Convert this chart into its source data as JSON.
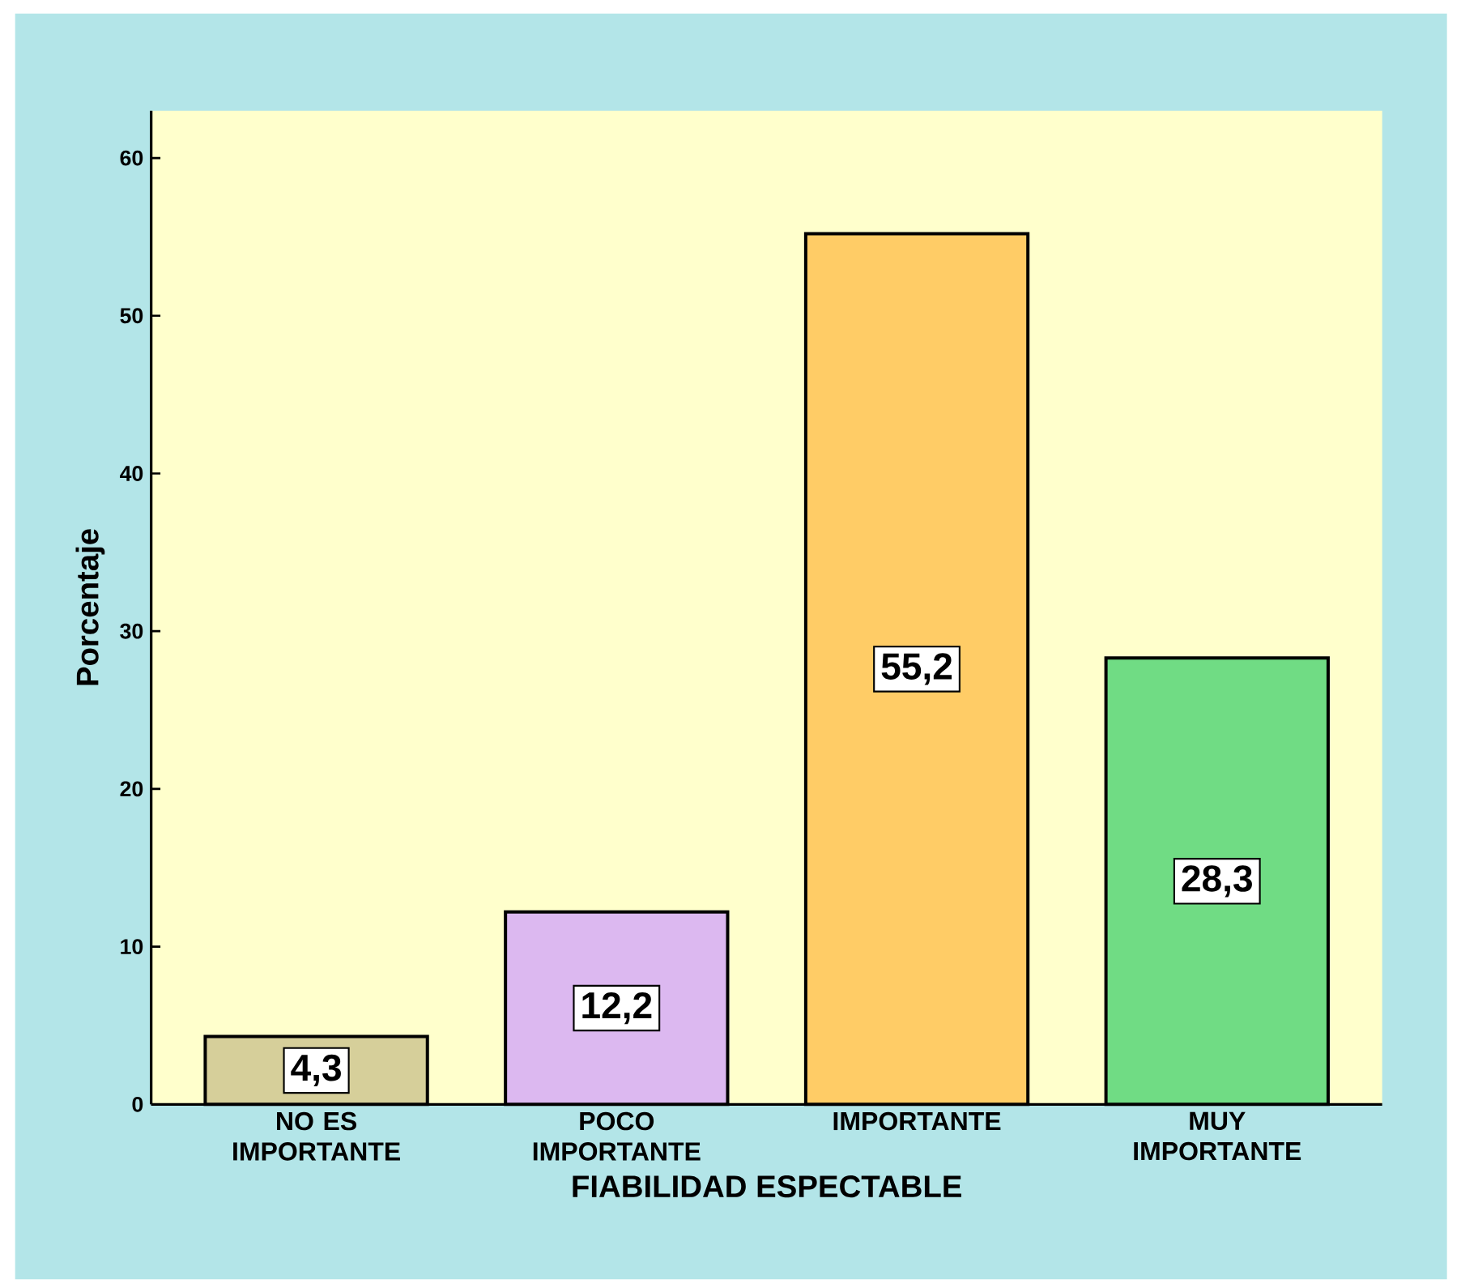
{
  "chart_data": {
    "type": "bar",
    "xlabel": "FIABILIDAD ESPECTABLE",
    "ylabel": "Porcentaje",
    "categories": [
      "NO ES IMPORTANTE",
      "POCO IMPORTANTE",
      "IMPORTANTE",
      "MUY IMPORTANTE"
    ],
    "values": [
      4.3,
      12.2,
      55.2,
      28.3
    ],
    "value_labels": [
      "4,3",
      "12,2",
      "55,2",
      "28,3"
    ],
    "colors": [
      "#d6cf9a",
      "#dcb8f0",
      "#ffcc66",
      "#70dc84"
    ],
    "ylim": [
      0,
      63
    ],
    "yticks": [
      0,
      10,
      20,
      30,
      40,
      50,
      60
    ],
    "grid": false
  }
}
